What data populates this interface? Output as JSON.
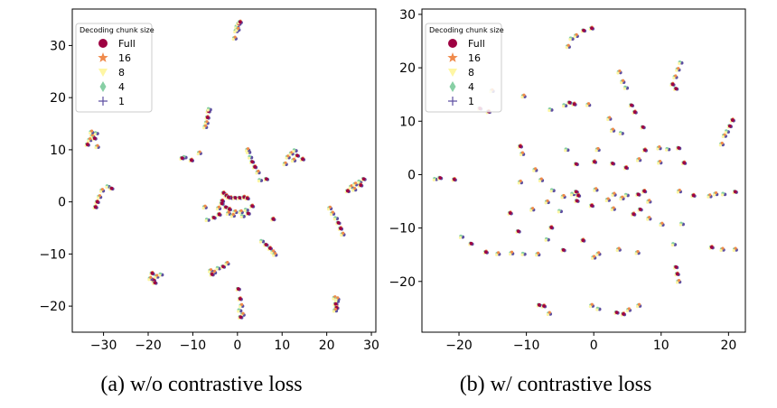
{
  "chart_data": [
    {
      "type": "scatter",
      "caption": "(a) w/o contrastive loss",
      "xlim": [
        -37,
        31
      ],
      "ylim": [
        -25,
        37
      ],
      "xticks": [
        -30,
        -20,
        -10,
        0,
        10,
        20,
        30
      ],
      "yticks": [
        -20,
        -10,
        0,
        10,
        20,
        30
      ],
      "grid": false,
      "legend": {
        "title": "Decoding chunk size",
        "placement": "top-left",
        "entries": [
          {
            "label": "Full",
            "marker": "circle",
            "color": "#9e0142"
          },
          {
            "label": "16",
            "marker": "star",
            "color": "#f08a4b"
          },
          {
            "label": "8",
            "marker": "triangle-down",
            "color": "#fef6a4"
          },
          {
            "label": "4",
            "marker": "diamond",
            "color": "#87cfa4"
          },
          {
            "label": "1",
            "marker": "plus",
            "color": "#5e4fa2"
          }
        ]
      },
      "clusters": [
        {
          "points": [
            [
              -0.3,
              32.8
            ],
            [
              -0.1,
              33.6
            ],
            [
              0.3,
              34.2
            ],
            [
              0.6,
              34.5
            ],
            [
              -0.6,
              31.4
            ],
            [
              0.1,
              33.1
            ]
          ]
        },
        {
          "points": [
            [
              -32.5,
              12.6
            ],
            [
              -33.1,
              11.9
            ],
            [
              -31.6,
              13.2
            ],
            [
              -32.0,
              12.2
            ],
            [
              -33.6,
              11.0
            ],
            [
              -31.4,
              10.6
            ],
            [
              -32.7,
              13.4
            ]
          ]
        },
        {
          "points": [
            [
              -31.4,
              0.0
            ],
            [
              -30.9,
              1.0
            ],
            [
              -30.3,
              2.2
            ],
            [
              -29.0,
              3.0
            ],
            [
              -28.2,
              2.6
            ],
            [
              -31.8,
              -1.0
            ]
          ]
        },
        {
          "points": [
            [
              -6.5,
              17.4
            ],
            [
              -6.7,
              16.2
            ],
            [
              -6.9,
              15.2
            ],
            [
              -7.2,
              14.4
            ],
            [
              -6.3,
              17.8
            ]
          ]
        },
        {
          "points": [
            [
              -11.8,
              8.6
            ],
            [
              -12.4,
              8.4
            ],
            [
              -10.3,
              8.0
            ],
            [
              -8.5,
              9.4
            ]
          ]
        },
        {
          "points": [
            [
              2.5,
              9.6
            ],
            [
              2.9,
              8.6
            ],
            [
              3.3,
              7.7
            ],
            [
              3.9,
              6.7
            ],
            [
              4.6,
              5.7
            ],
            [
              2.3,
              10.0
            ]
          ]
        },
        {
          "points": [
            [
              11.3,
              8.6
            ],
            [
              12.1,
              9.3
            ],
            [
              12.9,
              9.9
            ],
            [
              13.4,
              8.9
            ],
            [
              14.6,
              8.2
            ],
            [
              10.7,
              7.3
            ],
            [
              12.6,
              8.0
            ]
          ]
        },
        {
          "points": [
            [
              -3.1,
              1.7
            ],
            [
              -2.5,
              1.2
            ],
            [
              -1.5,
              0.8
            ],
            [
              -0.5,
              0.8
            ],
            [
              0.5,
              0.8
            ],
            [
              1.5,
              0.9
            ],
            [
              2.2,
              0.7
            ],
            [
              -3.4,
              0.2
            ],
            [
              -2.0,
              0.9
            ]
          ]
        },
        {
          "points": [
            [
              -2.6,
              -1.0
            ],
            [
              -1.8,
              -1.4
            ],
            [
              -0.5,
              -1.9
            ],
            [
              0.8,
              -1.9
            ],
            [
              2.0,
              -1.5
            ],
            [
              -3.5,
              -0.3
            ],
            [
              3.3,
              -0.8
            ],
            [
              -4.2,
              -1.2
            ]
          ]
        },
        {
          "points": [
            [
              -6.7,
              -3.4
            ],
            [
              -5.3,
              -3.0
            ],
            [
              -4.1,
              -2.4
            ],
            [
              -2.0,
              -2.2
            ],
            [
              -1.0,
              -2.6
            ],
            [
              1.2,
              -2.7
            ],
            [
              2.4,
              -2.2
            ]
          ]
        },
        {
          "points": [
            [
              -7.3,
              -1.0
            ],
            [
              5.1,
              4.2
            ],
            [
              6.5,
              4.4
            ],
            [
              8.0,
              -3.3
            ]
          ]
        },
        {
          "points": [
            [
              -5.2,
              -13.5
            ],
            [
              -6.0,
              -13.2
            ],
            [
              -4.3,
              -12.7
            ],
            [
              -3.2,
              -12.4
            ],
            [
              -5.7,
              -13.9
            ],
            [
              -2.3,
              -11.8
            ]
          ]
        },
        {
          "points": [
            [
              -18.8,
              -15.0
            ],
            [
              -19.5,
              -14.7
            ],
            [
              -18.1,
              -14.3
            ],
            [
              -17.1,
              -13.9
            ],
            [
              -18.5,
              -15.5
            ],
            [
              -19.1,
              -13.7
            ]
          ]
        },
        {
          "points": [
            [
              0.2,
              -16.7
            ],
            [
              0.6,
              -18.6
            ],
            [
              0.9,
              -19.9
            ],
            [
              1.2,
              -21.6
            ],
            [
              0.5,
              -20.8
            ],
            [
              0.7,
              -22.1
            ]
          ]
        },
        {
          "points": [
            [
              5.5,
              -7.5
            ],
            [
              6.4,
              -8.2
            ],
            [
              7.3,
              -8.9
            ],
            [
              8.0,
              -9.6
            ],
            [
              8.4,
              -10.1
            ]
          ]
        },
        {
          "points": [
            [
              21.8,
              -18.4
            ],
            [
              22.3,
              -19.0
            ],
            [
              22.0,
              -19.6
            ],
            [
              22.2,
              -20.3
            ],
            [
              21.9,
              -20.8
            ],
            [
              22.4,
              -18.6
            ]
          ]
        },
        {
          "points": [
            [
              20.7,
              -1.2
            ],
            [
              21.3,
              -2.2
            ],
            [
              22.1,
              -3.1
            ],
            [
              22.6,
              -4.0
            ],
            [
              23.1,
              -5.1
            ],
            [
              23.6,
              -6.2
            ]
          ]
        },
        {
          "points": [
            [
              24.7,
              2.1
            ],
            [
              25.5,
              2.9
            ],
            [
              26.4,
              3.4
            ],
            [
              27.4,
              3.9
            ],
            [
              28.3,
              4.4
            ],
            [
              27.6,
              3.2
            ],
            [
              26.2,
              2.4
            ]
          ]
        }
      ]
    },
    {
      "type": "scatter",
      "caption": "(b) w/ contrastive loss",
      "xlim": [
        -25.5,
        22.5
      ],
      "ylim": [
        -29.5,
        31
      ],
      "xticks": [
        -20,
        -10,
        0,
        10,
        20
      ],
      "yticks": [
        -20,
        -10,
        0,
        10,
        20,
        30
      ],
      "grid": false,
      "legend": {
        "title": "Decoding chunk size",
        "placement": "top-left",
        "entries": [
          {
            "label": "Full",
            "marker": "circle",
            "color": "#9e0142"
          },
          {
            "label": "16",
            "marker": "star",
            "color": "#f08a4b"
          },
          {
            "label": "8",
            "marker": "triangle-down",
            "color": "#fef6a4"
          },
          {
            "label": "4",
            "marker": "diamond",
            "color": "#87cfa4"
          },
          {
            "label": "1",
            "marker": "plus",
            "color": "#5e4fa2"
          }
        ]
      },
      "clusters": [
        {
          "points": [
            [
              -3.8,
              24.0
            ],
            [
              -3.3,
              25.5
            ],
            [
              -1.5,
              27.0
            ],
            [
              -0.3,
              27.4
            ],
            [
              -2.6,
              26.0
            ]
          ]
        },
        {
          "points": [
            [
              3.8,
              19.2
            ],
            [
              4.3,
              17.4
            ],
            [
              4.8,
              16.3
            ],
            [
              5.6,
              13.0
            ],
            [
              6.1,
              11.7
            ]
          ]
        },
        {
          "points": [
            [
              11.7,
              16.9
            ],
            [
              12.1,
              18.3
            ],
            [
              12.5,
              19.7
            ],
            [
              12.9,
              21.0
            ],
            [
              12.2,
              16.1
            ]
          ]
        },
        {
          "points": [
            [
              -16.9,
              12.4
            ],
            [
              -15.6,
              11.8
            ],
            [
              -15.1,
              15.7
            ],
            [
              -10.4,
              14.7
            ],
            [
              -6.4,
              12.2
            ]
          ]
        },
        {
          "points": [
            [
              -4.3,
              13.0
            ],
            [
              -3.6,
              13.5
            ],
            [
              -2.9,
              13.2
            ],
            [
              -0.8,
              13.1
            ]
          ]
        },
        {
          "points": [
            [
              19.4,
              7.3
            ],
            [
              19.8,
              8.1
            ],
            [
              20.2,
              9.1
            ],
            [
              20.6,
              10.2
            ],
            [
              19.0,
              5.7
            ]
          ]
        },
        {
          "points": [
            [
              2.3,
              10.5
            ],
            [
              2.8,
              8.3
            ],
            [
              4.1,
              7.8
            ],
            [
              7.3,
              8.9
            ],
            [
              7.6,
              4.6
            ],
            [
              9.7,
              5.0
            ]
          ]
        },
        {
          "points": [
            [
              -10.9,
              5.3
            ],
            [
              -10.6,
              3.9
            ],
            [
              -8.7,
              0.9
            ],
            [
              -4.0,
              4.7
            ],
            [
              -2.6,
              2.0
            ],
            [
              0.1,
              2.4
            ],
            [
              0.6,
              4.7
            ]
          ]
        },
        {
          "points": [
            [
              2.8,
              2.1
            ],
            [
              4.8,
              1.3
            ],
            [
              6.7,
              2.8
            ],
            [
              9.8,
              2.3
            ],
            [
              11.0,
              4.8
            ],
            [
              12.6,
              5.0
            ],
            [
              13.4,
              2.2
            ]
          ]
        },
        {
          "points": [
            [
              -23.5,
              -0.8
            ],
            [
              -22.8,
              -0.6
            ],
            [
              -20.7,
              -0.9
            ],
            [
              -10.9,
              -1.4
            ],
            [
              -7.8,
              -1.0
            ],
            [
              -6.1,
              -2.9
            ]
          ]
        },
        {
          "points": [
            [
              -4.5,
              -4.1
            ],
            [
              -3.1,
              -3.6
            ],
            [
              -2.6,
              -3.2
            ],
            [
              -2.3,
              -3.9
            ],
            [
              0.3,
              -2.8
            ],
            [
              2.1,
              -4.7
            ]
          ]
        },
        {
          "points": [
            [
              3.0,
              -3.7
            ],
            [
              4.2,
              -4.4
            ],
            [
              4.9,
              -3.8
            ],
            [
              6.6,
              -3.7
            ],
            [
              7.5,
              -3.1
            ],
            [
              8.2,
              -5.0
            ],
            [
              12.7,
              -3.1
            ]
          ]
        },
        {
          "points": [
            [
              -12.4,
              -7.2
            ],
            [
              -9.1,
              -6.5
            ],
            [
              -6.9,
              -5.1
            ],
            [
              -5.0,
              -6.8
            ],
            [
              -2.5,
              -4.9
            ],
            [
              -0.3,
              -5.8
            ],
            [
              2.9,
              -6.4
            ]
          ]
        },
        {
          "points": [
            [
              6.9,
              -6.5
            ],
            [
              5.9,
              -7.4
            ],
            [
              8.2,
              -8.2
            ],
            [
              10.1,
              -9.3
            ],
            [
              13.1,
              -9.2
            ],
            [
              -11.2,
              -10.6
            ],
            [
              -6.3,
              -9.9
            ]
          ]
        },
        {
          "points": [
            [
              -19.6,
              -11.6
            ],
            [
              -18.2,
              -12.9
            ],
            [
              -16.0,
              -14.5
            ],
            [
              -14.2,
              -14.8
            ],
            [
              -12.2,
              -14.7
            ],
            [
              -10.4,
              -14.8
            ]
          ]
        },
        {
          "points": [
            [
              -8.3,
              -14.9
            ],
            [
              -6.9,
              -12.1
            ],
            [
              -4.5,
              -14.1
            ],
            [
              -1.6,
              -12.3
            ],
            [
              0.0,
              -15.5
            ],
            [
              0.7,
              -14.8
            ]
          ]
        },
        {
          "points": [
            [
              3.7,
              -14.0
            ],
            [
              6.5,
              -14.6
            ],
            [
              11.9,
              -13.0
            ],
            [
              12.2,
              -17.3
            ],
            [
              12.4,
              -18.6
            ],
            [
              12.6,
              -20.0
            ]
          ]
        },
        {
          "points": [
            [
              14.8,
              -3.9
            ],
            [
              17.2,
              -4.0
            ],
            [
              18.1,
              -3.6
            ],
            [
              19.3,
              -3.6
            ],
            [
              21.0,
              -3.2
            ],
            [
              17.5,
              -13.6
            ],
            [
              19.1,
              -14.0
            ],
            [
              21.0,
              -14.0
            ]
          ]
        },
        {
          "points": [
            [
              -8.1,
              -24.4
            ],
            [
              -7.4,
              -24.6
            ],
            [
              -6.6,
              -26.0
            ],
            [
              -0.3,
              -24.5
            ],
            [
              0.7,
              -25.1
            ],
            [
              3.4,
              -25.8
            ],
            [
              4.4,
              -26.1
            ],
            [
              5.2,
              -25.3
            ],
            [
              6.7,
              -24.5
            ]
          ]
        }
      ]
    }
  ]
}
